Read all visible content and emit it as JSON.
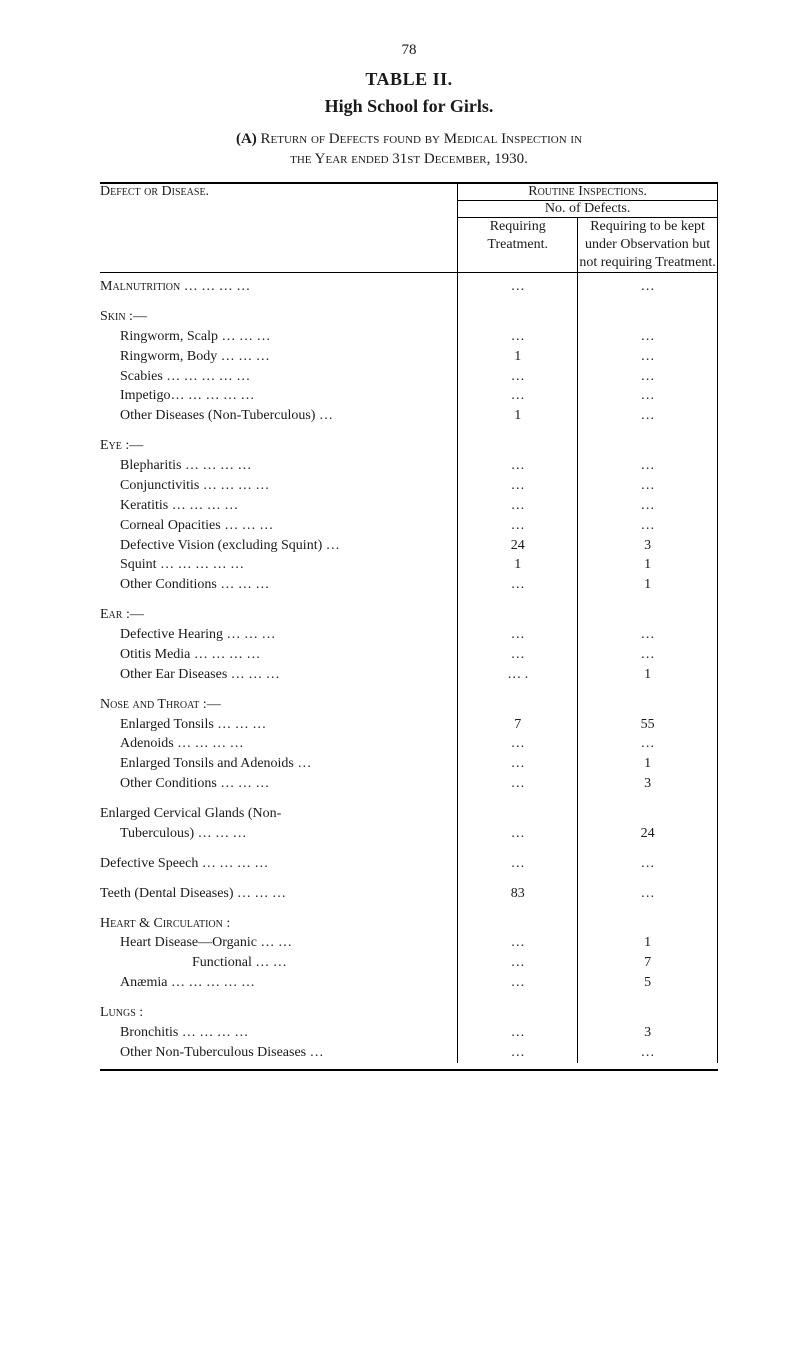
{
  "page_number": "78",
  "table_heading": "TABLE II.",
  "subject": "High School for Girls.",
  "intro_label": "(A)",
  "intro_line1": "Return of Defects found by Medical Inspection in",
  "intro_line2": "the Year ended 31st December, 1930.",
  "headers": {
    "routine": "Routine Inspections.",
    "no_of_defects": "No. of Defects.",
    "defect_or_disease": "Defect or Disease.",
    "requiring_treatment": "Requiring Treatment.",
    "requiring_kept": "Requiring to be kept under Observation but not requiring Treatment."
  },
  "rows": [
    {
      "type": "group",
      "label": "Malnutrition",
      "dots": "   …    …    …    …",
      "v1": "…",
      "v2": "…"
    },
    {
      "type": "spacer"
    },
    {
      "type": "group",
      "label": "Skin :—"
    },
    {
      "type": "item",
      "label": "Ringworm, Scalp",
      "dots": "   …    …    …",
      "v1": "…",
      "v2": "…"
    },
    {
      "type": "item",
      "label": "Ringworm, Body",
      "dots": "   …    …    …",
      "v1": "1",
      "v2": "…"
    },
    {
      "type": "item",
      "label": "Scabies …",
      "dots": "   …    …    …    …",
      "v1": "…",
      "v2": "…"
    },
    {
      "type": "item",
      "label": "Impetigo…",
      "dots": "   …    …    …    …",
      "v1": "…",
      "v2": "…"
    },
    {
      "type": "item",
      "label": "Other Diseases (Non-Tuberculous)",
      "dots": " …",
      "v1": "1",
      "v2": "…"
    },
    {
      "type": "spacer"
    },
    {
      "type": "group",
      "label": "Eye :—"
    },
    {
      "type": "item",
      "label": "Blepharitis",
      "dots": "   …    …    …    …",
      "v1": "…",
      "v2": "…"
    },
    {
      "type": "item",
      "label": "Conjunctivitis …",
      "dots": "   …    …    …",
      "v1": "…",
      "v2": "…"
    },
    {
      "type": "item",
      "label": "Keratitis",
      "dots": "   …    …    …    …",
      "v1": "…",
      "v2": "…"
    },
    {
      "type": "item",
      "label": "Corneal Opacities",
      "dots": "   …    …    …",
      "v1": "…",
      "v2": "…"
    },
    {
      "type": "item",
      "label": "Defective Vision (excluding Squint)",
      "dots": " …",
      "v1": "24",
      "v2": "3"
    },
    {
      "type": "item",
      "label": "Squint   …",
      "dots": "   …    …    …    …",
      "v1": "1",
      "v2": "1"
    },
    {
      "type": "item",
      "label": "Other Conditions",
      "dots": "   …    …    …",
      "v1": "…",
      "v2": "1"
    },
    {
      "type": "spacer"
    },
    {
      "type": "group",
      "label": "Ear :—"
    },
    {
      "type": "item",
      "label": "Defective Hearing",
      "dots": "   …    …    …",
      "v1": "…",
      "v2": "…"
    },
    {
      "type": "item",
      "label": "Otitis Media",
      "dots": "   …    …    …    …",
      "v1": "…",
      "v2": "…"
    },
    {
      "type": "item",
      "label": "Other Ear Diseases",
      "dots": "   …    …    …",
      "v1": "… .",
      "v2": "1"
    },
    {
      "type": "spacer"
    },
    {
      "type": "group",
      "label": "Nose and Throat :—"
    },
    {
      "type": "item",
      "label": "Enlarged Tonsils",
      "dots": "   …    …    …",
      "v1": "7",
      "v2": "55"
    },
    {
      "type": "item",
      "label": "Adenoids",
      "dots": "   …    …    …    …",
      "v1": "…",
      "v2": "…"
    },
    {
      "type": "item",
      "label": "Enlarged Tonsils and Adenoids",
      "dots": "   …",
      "v1": "…",
      "v2": "1"
    },
    {
      "type": "item",
      "label": "Other Conditions",
      "dots": "   …    …    …",
      "v1": "…",
      "v2": "3"
    },
    {
      "type": "spacer"
    },
    {
      "type": "plain",
      "label": "Enlarged   Cervical   Glands   (Non-",
      "v1": "",
      "v2": ""
    },
    {
      "type": "item",
      "label": "Tuberculous)",
      "dots": "   …    …    …",
      "v1": "…",
      "v2": "24"
    },
    {
      "type": "spacer"
    },
    {
      "type": "plain",
      "label": "Defective Speech …",
      "dots": "   …    …    …",
      "v1": "…",
      "v2": "…"
    },
    {
      "type": "spacer"
    },
    {
      "type": "plain",
      "label": "Teeth (Dental Diseases) …",
      "dots": "   …    …",
      "v1": "83",
      "v2": "…"
    },
    {
      "type": "spacer"
    },
    {
      "type": "group",
      "label": "Heart & Circulation :"
    },
    {
      "type": "item",
      "label": "Heart Disease—Organic",
      "dots": "   …    …",
      "v1": "…",
      "v2": "1"
    },
    {
      "type": "item2",
      "label": "Functional",
      "dots": "   …    …",
      "v1": "…",
      "v2": "7"
    },
    {
      "type": "item",
      "label": "Anæmia …",
      "dots": "   …    …    …    …",
      "v1": "…",
      "v2": "5"
    },
    {
      "type": "spacer"
    },
    {
      "type": "group",
      "label": "Lungs :"
    },
    {
      "type": "item",
      "label": "Bronchitis",
      "dots": "   …    …    …    …",
      "v1": "…",
      "v2": "3"
    },
    {
      "type": "item",
      "label": "Other Non-Tuberculous Diseases",
      "dots": "   …",
      "v1": "…",
      "v2": "…"
    }
  ]
}
